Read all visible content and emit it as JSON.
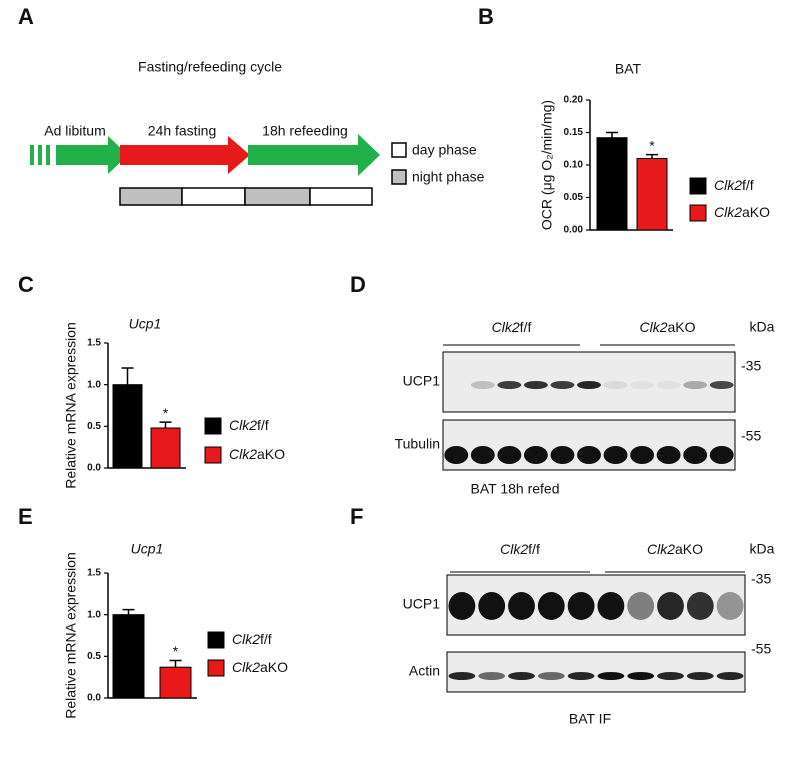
{
  "panels": [
    "A",
    "B",
    "C",
    "D",
    "E",
    "F"
  ],
  "diagram": {
    "title": "Fasting/refeeding cycle",
    "phases": [
      "Ad libitum",
      "24h fasting",
      "18h refeeding"
    ],
    "legend": [
      "day phase",
      "night phase"
    ]
  },
  "chart_data": [
    {
      "type": "bar",
      "title": "BAT",
      "ylabel": "OCR (μg O₂/min/mg)",
      "categories": [
        null
      ],
      "series": [
        {
          "name": "Clk2f/f",
          "color": "#000000",
          "values": [
            0.142
          ],
          "errors": [
            0.008
          ]
        },
        {
          "name": "Clk2aKO",
          "color": "#e8191b",
          "values": [
            0.11
          ],
          "errors": [
            0.006
          ]
        }
      ],
      "annotation": "*",
      "ylim": [
        0,
        0.2
      ],
      "yticks": [
        {
          "value": 0,
          "label": "0.00"
        },
        {
          "value": 0.05,
          "label": "0.05"
        },
        {
          "value": 0.1,
          "label": "0.10"
        },
        {
          "value": 0.15,
          "label": "0.15"
        },
        {
          "value": 0.2,
          "label": "0.20"
        }
      ]
    },
    {
      "type": "bar",
      "title": "Ucp1",
      "ylabel": "Relative mRNA expression",
      "categories": [
        null
      ],
      "series": [
        {
          "name": "Clk2f/f",
          "color": "#000000",
          "values": [
            1.0
          ],
          "errors": [
            0.2
          ]
        },
        {
          "name": "Clk2aKO",
          "color": "#e8191b",
          "values": [
            0.48
          ],
          "errors": [
            0.07
          ]
        }
      ],
      "annotation": "*",
      "ylim": [
        0,
        1.5
      ],
      "yticks": [
        {
          "value": 0,
          "label": "0.0"
        },
        {
          "value": 0.5,
          "label": "0.5"
        },
        {
          "value": 1,
          "label": "1.0"
        },
        {
          "value": 1.5,
          "label": "1.5"
        }
      ]
    },
    {
      "type": "bar",
      "title": "Ucp1",
      "ylabel": "Relative mRNA expression",
      "categories": [
        null
      ],
      "series": [
        {
          "name": "Clk2f/f",
          "color": "#000000",
          "values": [
            1.0
          ],
          "errors": [
            0.06
          ]
        },
        {
          "name": "Clk2aKO",
          "color": "#e8191b",
          "values": [
            0.37
          ],
          "errors": [
            0.08
          ]
        }
      ],
      "annotation": "*",
      "ylim": [
        0,
        1.5
      ],
      "yticks": [
        {
          "value": 0,
          "label": "0.0"
        },
        {
          "value": 0.5,
          "label": "0.5"
        },
        {
          "value": 1,
          "label": "1.0"
        },
        {
          "value": 1.5,
          "label": "1.5"
        }
      ]
    }
  ],
  "blot_d": {
    "groups": [
      "Clk2f/f",
      "Clk2aKO"
    ],
    "unit": "kDa",
    "rows": [
      "UCP1",
      "Tubulin"
    ],
    "markers": [
      "-35",
      "-55"
    ],
    "caption": "BAT 18h refed"
  },
  "blot_f": {
    "groups": [
      "Clk2f/f",
      "Clk2aKO"
    ],
    "unit": "kDa",
    "rows": [
      "UCP1",
      "Actin"
    ],
    "markers": [
      "-35",
      "-55"
    ],
    "caption": "BAT IF"
  }
}
